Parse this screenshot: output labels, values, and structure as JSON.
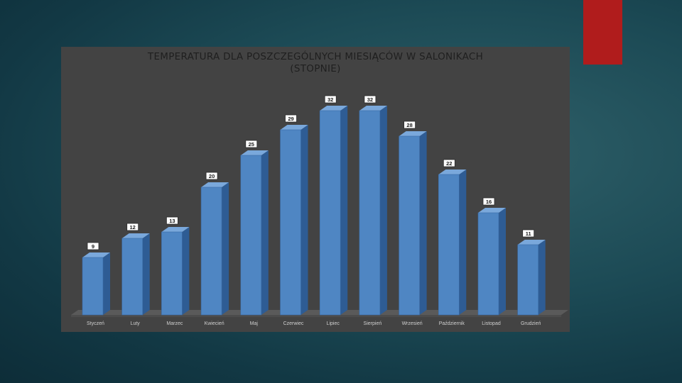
{
  "colors": {
    "accent": "#b01c1c",
    "panel": "#434343",
    "bar_front": "#4f86c3",
    "bar_side": "#2e5c94",
    "bar_top": "#7aa8db"
  },
  "chart_data": {
    "type": "bar",
    "title": "TEMPERATURA DLA POSZCZEGÓLNYCH MIESIĄCÓW  W SALONIKACH",
    "subtitle": "(STOPNIE)",
    "categories": [
      "Styczeń",
      "Luty",
      "Marzec",
      "Kwiecień",
      "Maj",
      "Czerwiec",
      "Lipiec",
      "Sierpień",
      "Wrzesień",
      "Październik",
      "Listopad",
      "Grudzień"
    ],
    "values": [
      9,
      12,
      13,
      20,
      25,
      29,
      32,
      32,
      28,
      22,
      16,
      11
    ],
    "data_labels": [
      "9",
      "12",
      "13",
      "20",
      "25",
      "29",
      "32",
      "32",
      "28",
      "22",
      "16",
      "11"
    ],
    "ylim": [
      0,
      32
    ],
    "grid": false,
    "legend": "none",
    "style": "3d-columns"
  }
}
